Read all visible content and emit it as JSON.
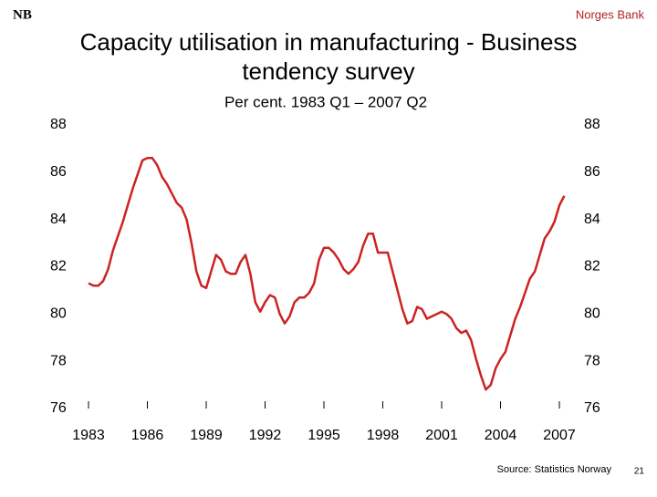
{
  "logo": "NB",
  "header": "Norges Bank",
  "chart_data": {
    "type": "line",
    "title": "Capacity utilisation in manufacturing - Business tendency survey",
    "subtitle": "Per cent. 1983 Q1 – 2007 Q2",
    "x": [
      1983,
      1983.25,
      1983.5,
      1983.75,
      1984,
      1984.25,
      1984.5,
      1984.75,
      1985,
      1985.25,
      1985.5,
      1985.75,
      1986,
      1986.25,
      1986.5,
      1986.75,
      1987,
      1987.25,
      1987.5,
      1987.75,
      1988,
      1988.25,
      1988.5,
      1988.75,
      1989,
      1989.25,
      1989.5,
      1989.75,
      1990,
      1990.25,
      1990.5,
      1990.75,
      1991,
      1991.25,
      1991.5,
      1991.75,
      1992,
      1992.25,
      1992.5,
      1992.75,
      1993,
      1993.25,
      1993.5,
      1993.75,
      1994,
      1994.25,
      1994.5,
      1994.75,
      1995,
      1995.25,
      1995.5,
      1995.75,
      1996,
      1996.25,
      1996.5,
      1996.75,
      1997,
      1997.25,
      1997.5,
      1997.75,
      1998,
      1998.25,
      1998.5,
      1998.75,
      1999,
      1999.25,
      1999.5,
      1999.75,
      2000,
      2000.25,
      2000.5,
      2000.75,
      2001,
      2001.25,
      2001.5,
      2001.75,
      2002,
      2002.25,
      2002.5,
      2002.75,
      2003,
      2003.25,
      2003.5,
      2003.75,
      2004,
      2004.25,
      2004.5,
      2004.75,
      2005,
      2005.25,
      2005.5,
      2005.75,
      2006,
      2006.25,
      2006.5,
      2006.75,
      2007,
      2007.25
    ],
    "series": [
      {
        "color": "#cc2222",
        "values": [
          81.3,
          81.2,
          81.2,
          81.4,
          81.9,
          82.7,
          83.3,
          83.9,
          84.6,
          85.3,
          85.9,
          86.5,
          86.6,
          86.6,
          86.3,
          85.8,
          85.5,
          85.1,
          84.7,
          84.5,
          84.0,
          83.0,
          81.8,
          81.2,
          81.1,
          81.8,
          82.5,
          82.3,
          81.8,
          81.7,
          81.7,
          82.2,
          82.5,
          81.7,
          80.5,
          80.1,
          80.5,
          80.8,
          80.7,
          80.0,
          79.6,
          79.9,
          80.5,
          80.7,
          80.7,
          80.9,
          81.3,
          82.3,
          82.8,
          82.8,
          82.6,
          82.3,
          81.9,
          81.7,
          81.9,
          82.2,
          82.9,
          83.4,
          83.4,
          82.6,
          82.6,
          82.6,
          81.8,
          81.0,
          80.2,
          79.6,
          79.7,
          80.3,
          80.2,
          79.8,
          79.9,
          80.0,
          80.1,
          80.0,
          79.8,
          79.4,
          79.2,
          79.3,
          78.9,
          78.1,
          77.4,
          76.8,
          77.0,
          77.7,
          78.1,
          78.4,
          79.1,
          79.8,
          80.3,
          80.9,
          81.5,
          81.8,
          82.5,
          83.2,
          83.5,
          83.9,
          84.6,
          85.0
        ]
      }
    ],
    "xlim": [
      1983,
      2007.25
    ],
    "xticks": [
      1983,
      1986,
      1989,
      1992,
      1995,
      1998,
      2001,
      2004,
      2007
    ],
    "ylim": [
      76,
      88
    ],
    "yticks": [
      76,
      78,
      80,
      82,
      84,
      86,
      88
    ],
    "source": "Source: Statistics Norway",
    "page": "21"
  }
}
